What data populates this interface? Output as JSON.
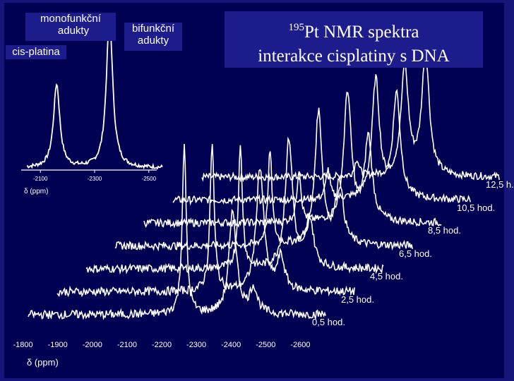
{
  "title": {
    "superscript": "195",
    "line1": "Pt NMR spektra",
    "line2": "interakce cisplatiny s DNA"
  },
  "annotations": {
    "mono_line1": "monofunkční",
    "mono_line2": "adukty",
    "cis_platina": "cis-platina",
    "bi_line1": "bifunkční",
    "bi_line2": "adukty"
  },
  "colors": {
    "background": "#15157a",
    "trace": "#ffffff",
    "label_box": "#1c1c8c"
  },
  "chart_data": [
    {
      "type": "line",
      "title": "",
      "xlabel": "δ (ppm)",
      "ylabel": "",
      "xlim": [
        -2050,
        -2550
      ],
      "x_reversed": true,
      "x_ticks": [
        -2100,
        -2300,
        -2500
      ],
      "x_tick_labels": [
        "-2100",
        "-2300",
        "-2500"
      ],
      "series": [
        {
          "peaks_ppm": [
            -2160,
            -2355
          ],
          "peak_heights": [
            0.55,
            1.0
          ]
        }
      ]
    },
    {
      "type": "line",
      "title": "",
      "xlabel": "δ (ppm)",
      "ylabel": "",
      "xlim": [
        -1750,
        -2650
      ],
      "x_reversed": true,
      "x_ticks": [
        -1800,
        -1900,
        -2000,
        -2100,
        -2200,
        -2300,
        -2400,
        -2500,
        -2600
      ],
      "x_tick_labels": [
        "-1800",
        "-1900",
        "-2000",
        "-2100",
        "-2200",
        "-2300",
        "-2400",
        "-2500",
        "-2600"
      ],
      "grid": false,
      "legend": "none",
      "series": [
        {
          "name": "0,5 hod.",
          "peaks_ppm": [
            -2265,
            -2405,
            -2465
          ],
          "peak_heights": [
            1.0,
            0.6,
            0.15
          ]
        },
        {
          "name": "2,5 hod.",
          "peaks_ppm": [
            -2262,
            -2400,
            -2460
          ],
          "peak_heights": [
            0.9,
            0.75,
            0.2
          ]
        },
        {
          "name": "4,5 hod.",
          "peaks_ppm": [
            -2260,
            -2400,
            -2460
          ],
          "peak_heights": [
            0.75,
            0.8,
            0.3
          ]
        },
        {
          "name": "6,5 hod.",
          "peaks_ppm": [
            -2262,
            -2402,
            -2462
          ],
          "peak_heights": [
            0.6,
            0.85,
            0.4
          ]
        },
        {
          "name": "8,5 hod.",
          "peaks_ppm": [
            -2262,
            -2402,
            -2462
          ],
          "peak_heights": [
            0.35,
            0.85,
            0.55
          ]
        },
        {
          "name": "10,5 hod.",
          "peaks_ppm": [
            -2262,
            -2400,
            -2460
          ],
          "peak_heights": [
            0.2,
            0.8,
            0.7
          ]
        },
        {
          "name": "12,5 h.",
          "peaks_ppm": [
            -2262,
            -2400,
            -2460
          ],
          "peak_heights": [
            0.12,
            0.75,
            0.85
          ]
        }
      ]
    }
  ]
}
